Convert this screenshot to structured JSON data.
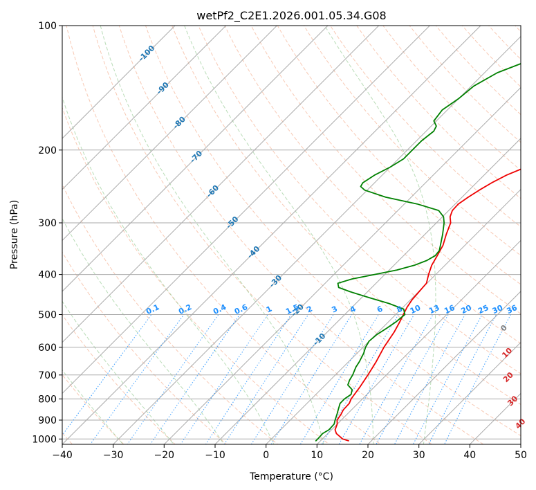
{
  "chart_data": {
    "type": "line",
    "subtype": "skew-t log-p diagram",
    "title": "wetPf2_C2E1.2026.001.05.34.G08",
    "xlabel": "Temperature (°C)",
    "ylabel": "Pressure (hPa)",
    "xlim": [
      -40,
      50
    ],
    "ylim": [
      1030,
      100
    ],
    "x_ticks": [
      -40,
      -30,
      -20,
      -10,
      0,
      10,
      20,
      30,
      40,
      50
    ],
    "x_tick_labels": [
      "−40",
      "−30",
      "−20",
      "−10",
      "0",
      "10",
      "20",
      "30",
      "40",
      "50"
    ],
    "y_ticks": [
      1000,
      900,
      800,
      700,
      600,
      500,
      400,
      300,
      200,
      100
    ],
    "y_tick_labels": [
      "1000",
      "900",
      "800",
      "700",
      "600",
      "500",
      "400",
      "300",
      "200",
      "100"
    ],
    "colors": {
      "temperature": "#ee0000",
      "dewpoint": "#008000",
      "isotherm": "#aaaaaa",
      "dry_adiabat": "#f4a582",
      "moist_adiabat": "#7fbf7b",
      "mixing_ratio": "#1e90ff",
      "mixing_label": "#1e90ff",
      "moist_label": "#1f77b4",
      "dry_label": "#d62728",
      "dry_label_zero": "#808080"
    },
    "series": [
      {
        "name": "Temperature",
        "points": [
          {
            "p": 1010,
            "t": 15.5
          },
          {
            "p": 1000,
            "t": 14.0
          },
          {
            "p": 970,
            "t": 11.7
          },
          {
            "p": 950,
            "t": 10.7
          },
          {
            "p": 920,
            "t": 10.0
          },
          {
            "p": 900,
            "t": 9.2
          },
          {
            "p": 870,
            "t": 8.8
          },
          {
            "p": 850,
            "t": 8.4
          },
          {
            "p": 820,
            "t": 8.3
          },
          {
            "p": 800,
            "t": 7.8
          },
          {
            "p": 750,
            "t": 7.2
          },
          {
            "p": 700,
            "t": 6.4
          },
          {
            "p": 650,
            "t": 5.4
          },
          {
            "p": 600,
            "t": 4.1
          },
          {
            "p": 550,
            "t": 3.1
          },
          {
            "p": 520,
            "t": 2.2
          },
          {
            "p": 500,
            "t": 1.5
          },
          {
            "p": 480,
            "t": 0.8
          },
          {
            "p": 460,
            "t": 0.3
          },
          {
            "p": 440,
            "t": 0.1
          },
          {
            "p": 420,
            "t": -0.1
          },
          {
            "p": 400,
            "t": -1.4
          },
          {
            "p": 380,
            "t": -2.6
          },
          {
            "p": 360,
            "t": -3.4
          },
          {
            "p": 340,
            "t": -4.3
          },
          {
            "p": 320,
            "t": -5.8
          },
          {
            "p": 300,
            "t": -7.2
          },
          {
            "p": 290,
            "t": -8.5
          },
          {
            "p": 280,
            "t": -9.3
          },
          {
            "p": 270,
            "t": -9.4
          },
          {
            "p": 260,
            "t": -8.8
          },
          {
            "p": 250,
            "t": -8.0
          },
          {
            "p": 240,
            "t": -7.0
          },
          {
            "p": 230,
            "t": -5.6
          },
          {
            "p": 220,
            "t": -3.4
          },
          {
            "p": 210,
            "t": -1.4
          },
          {
            "p": 200,
            "t": 0.2
          },
          {
            "p": 190,
            "t": 1.3
          },
          {
            "p": 180,
            "t": 2.0
          },
          {
            "p": 170,
            "t": 2.2
          },
          {
            "p": 160,
            "t": 2.4
          },
          {
            "p": 150,
            "t": 3.2
          },
          {
            "p": 140,
            "t": 3.9
          },
          {
            "p": 130,
            "t": 4.0
          },
          {
            "p": 120,
            "t": 3.8
          },
          {
            "p": 110,
            "t": 4.1
          },
          {
            "p": 100,
            "t": 5.0
          }
        ]
      },
      {
        "name": "Dewpoint",
        "points": [
          {
            "p": 1010,
            "t": 9.1
          },
          {
            "p": 1000,
            "t": 9.1
          },
          {
            "p": 970,
            "t": 9.0
          },
          {
            "p": 950,
            "t": 9.5
          },
          {
            "p": 920,
            "t": 9.4
          },
          {
            "p": 900,
            "t": 8.8
          },
          {
            "p": 870,
            "t": 8.0
          },
          {
            "p": 850,
            "t": 7.4
          },
          {
            "p": 820,
            "t": 6.5
          },
          {
            "p": 800,
            "t": 6.5
          },
          {
            "p": 780,
            "t": 6.9
          },
          {
            "p": 760,
            "t": 6.2
          },
          {
            "p": 740,
            "t": 4.4
          },
          {
            "p": 720,
            "t": 3.8
          },
          {
            "p": 700,
            "t": 3.4
          },
          {
            "p": 670,
            "t": 2.5
          },
          {
            "p": 650,
            "t": 2.1
          },
          {
            "p": 620,
            "t": 1.3
          },
          {
            "p": 600,
            "t": 0.5
          },
          {
            "p": 580,
            "t": 0.0
          },
          {
            "p": 560,
            "t": 0.2
          },
          {
            "p": 540,
            "t": 0.9
          },
          {
            "p": 520,
            "t": 1.5
          },
          {
            "p": 500,
            "t": 1.8
          },
          {
            "p": 485,
            "t": 0.5
          },
          {
            "p": 470,
            "t": -3.5
          },
          {
            "p": 455,
            "t": -8.5
          },
          {
            "p": 440,
            "t": -13.5
          },
          {
            "p": 430,
            "t": -16.5
          },
          {
            "p": 420,
            "t": -17.5
          },
          {
            "p": 410,
            "t": -15.5
          },
          {
            "p": 400,
            "t": -12.0
          },
          {
            "p": 390,
            "t": -8.5
          },
          {
            "p": 380,
            "t": -6.0
          },
          {
            "p": 370,
            "t": -4.5
          },
          {
            "p": 360,
            "t": -3.8
          },
          {
            "p": 350,
            "t": -4.0
          },
          {
            "p": 340,
            "t": -4.8
          },
          {
            "p": 320,
            "t": -6.5
          },
          {
            "p": 300,
            "t": -8.5
          },
          {
            "p": 290,
            "t": -9.8
          },
          {
            "p": 280,
            "t": -12.0
          },
          {
            "p": 270,
            "t": -17.5
          },
          {
            "p": 260,
            "t": -25.0
          },
          {
            "p": 250,
            "t": -30.5
          },
          {
            "p": 245,
            "t": -32.0
          },
          {
            "p": 240,
            "t": -32.3
          },
          {
            "p": 230,
            "t": -31.5
          },
          {
            "p": 220,
            "t": -30.0
          },
          {
            "p": 210,
            "t": -29.0
          },
          {
            "p": 200,
            "t": -29.0
          },
          {
            "p": 190,
            "t": -29.0
          },
          {
            "p": 180,
            "t": -28.5
          },
          {
            "p": 175,
            "t": -29.0
          },
          {
            "p": 170,
            "t": -30.5
          },
          {
            "p": 160,
            "t": -31.0
          },
          {
            "p": 150,
            "t": -30.0
          },
          {
            "p": 140,
            "t": -29.5
          },
          {
            "p": 130,
            "t": -27.5
          },
          {
            "p": 120,
            "t": -23.0
          },
          {
            "p": 110,
            "t": -17.5
          },
          {
            "p": 100,
            "t": -14.0
          }
        ]
      }
    ],
    "isotherms": [
      -100,
      -90,
      -80,
      -70,
      -60,
      -50,
      -40,
      -30,
      -20,
      -10,
      0,
      10,
      20,
      30,
      40,
      50
    ],
    "dry_adiabats": [
      -40,
      -30,
      -20,
      -10,
      0,
      10,
      20,
      30,
      40,
      50,
      60,
      70,
      80,
      90,
      100,
      110,
      120,
      130,
      140,
      150,
      160,
      170,
      180,
      190,
      200
    ],
    "moist_adiabats": [
      -30,
      -20,
      -10,
      0,
      10,
      20,
      30
    ],
    "mixing_ratios": [
      0.1,
      0.2,
      0.4,
      0.6,
      1,
      1.5,
      2,
      3,
      4,
      6,
      8,
      10,
      13,
      16,
      20,
      25,
      30,
      36
    ],
    "moist_adiabat_labels": [
      {
        "text": "-100",
        "t": -100,
        "p": 117
      },
      {
        "text": "-90",
        "t": -90,
        "p": 142
      },
      {
        "text": "-80",
        "t": -80,
        "p": 172
      },
      {
        "text": "-70",
        "t": -70,
        "p": 208
      },
      {
        "text": "-60",
        "t": -60,
        "p": 252
      },
      {
        "text": "-50",
        "t": -50,
        "p": 300
      },
      {
        "text": "-40",
        "t": -40,
        "p": 354
      },
      {
        "text": "-30",
        "t": -30,
        "p": 416
      },
      {
        "text": "-20",
        "t": -20,
        "p": 489
      },
      {
        "text": "-10",
        "t": -10,
        "p": 575
      }
    ],
    "mixing_ratio_labels": [
      "0.1",
      "0.2",
      "0.4",
      "0.6",
      "1",
      "1.5",
      "2",
      "3",
      "4",
      "6",
      "8",
      "10",
      "13",
      "16",
      "20",
      "25",
      "30",
      "36"
    ],
    "dry_adiabat_labels": [
      {
        "text": "0",
        "t": 24,
        "p": 540
      },
      {
        "text": "10",
        "t": 29.5,
        "p": 620
      },
      {
        "text": "20",
        "t": 34.5,
        "p": 710
      },
      {
        "text": "30",
        "t": 40,
        "p": 810
      },
      {
        "text": "40",
        "t": 46,
        "p": 920
      }
    ]
  }
}
